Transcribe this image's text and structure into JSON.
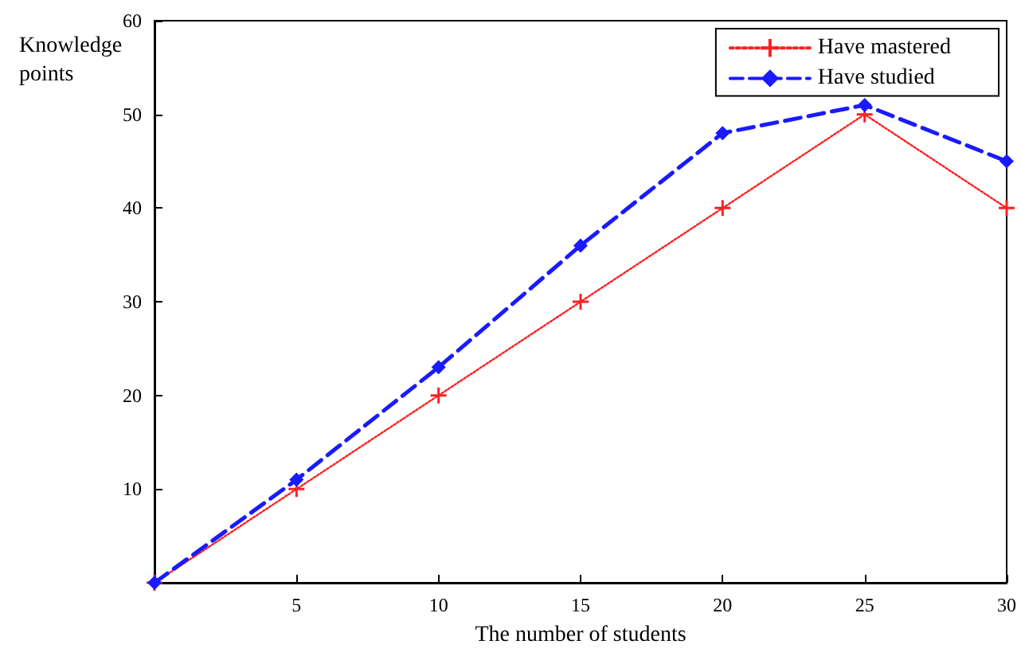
{
  "chart_data": {
    "type": "line",
    "xlabel": "The number of students",
    "ylabel": "Knowledge points",
    "x": [
      0,
      5,
      10,
      15,
      20,
      25,
      30
    ],
    "series": [
      {
        "name": "Have mastered",
        "color": "#ff2020",
        "values": [
          0,
          10,
          20,
          30,
          40,
          50,
          40
        ],
        "marker": "cross",
        "line_style": "dotted"
      },
      {
        "name": "Have studied",
        "color": "#1a1aff",
        "values": [
          0,
          11,
          23,
          36,
          48,
          51,
          45
        ],
        "marker": "diamond",
        "line_style": "dashed"
      }
    ],
    "xlim": [
      0,
      30
    ],
    "xticks": [
      5,
      10,
      15,
      20,
      25,
      30
    ],
    "ylim": [
      0,
      60
    ],
    "yticks": [
      10,
      20,
      30,
      40,
      50,
      60
    ],
    "grid": false,
    "legend": "top right"
  }
}
